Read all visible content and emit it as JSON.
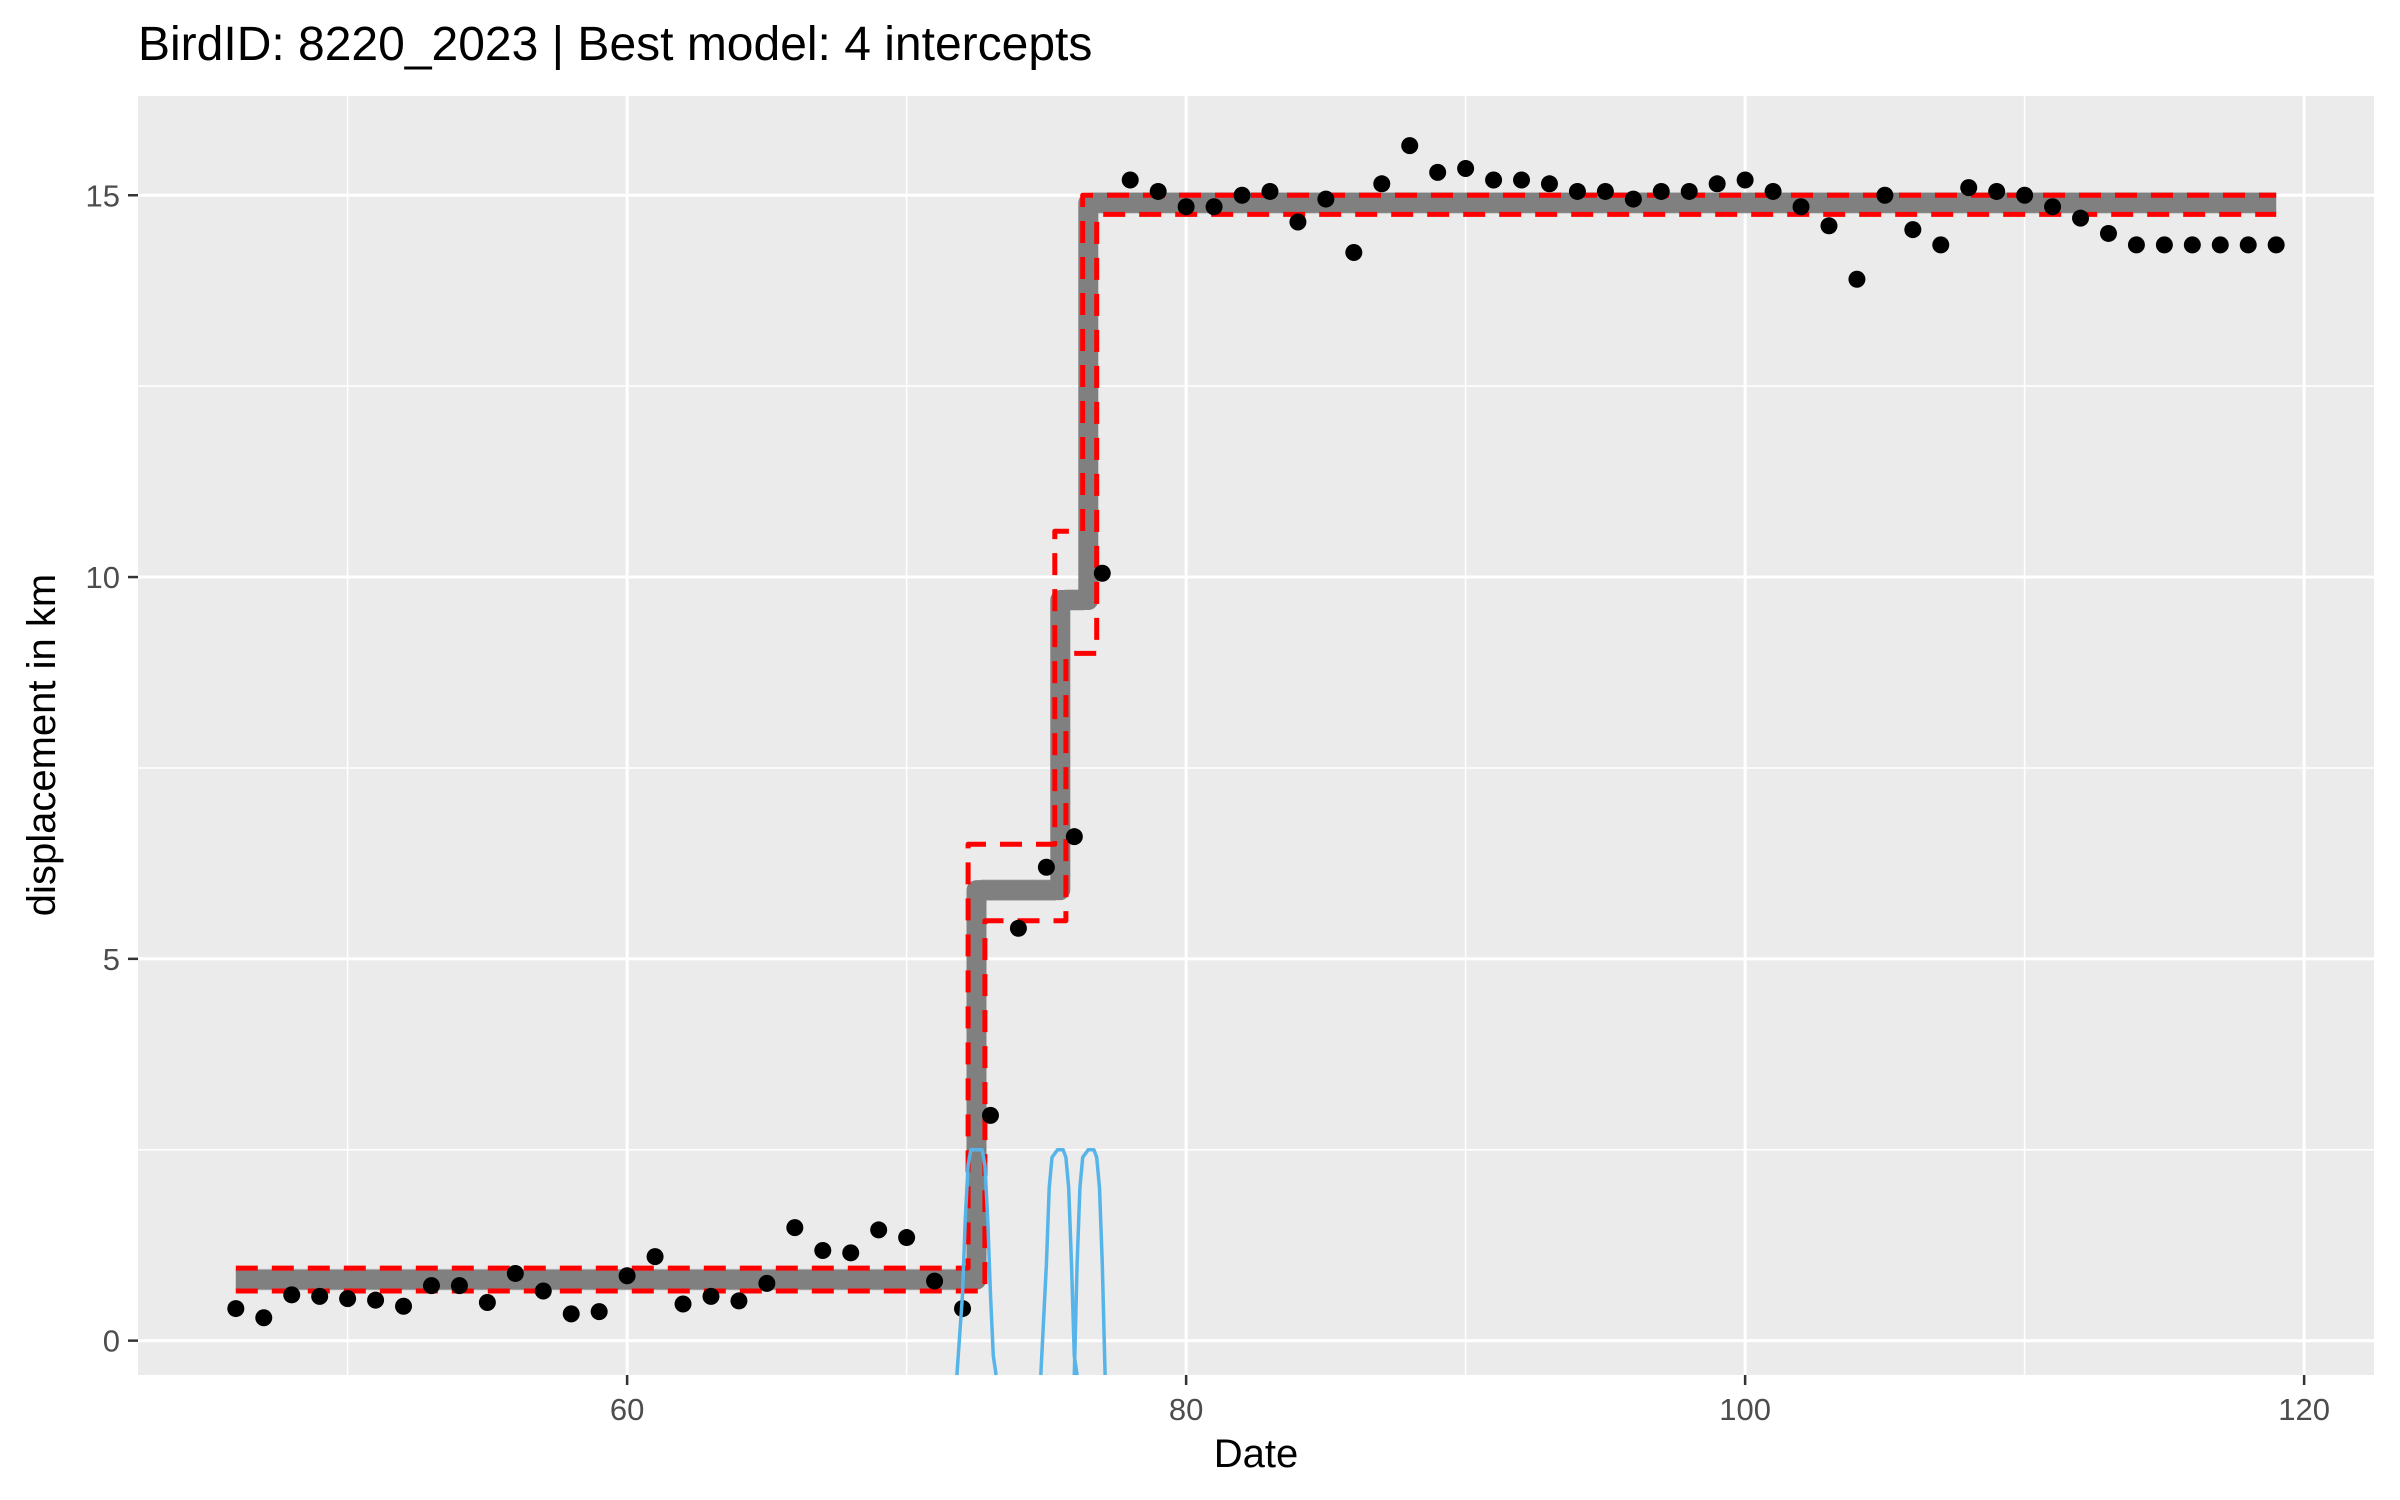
{
  "chart_data": {
    "type": "scatter",
    "title": "BirdID: 8220_2023 | Best model: 4 intercepts",
    "xlabel": "Date",
    "ylabel": "displacement in km",
    "xlim": [
      42.5,
      122.5
    ],
    "ylim": [
      -0.45,
      16.3
    ],
    "x_ticks": [
      60,
      80,
      100,
      120
    ],
    "y_ticks": [
      0,
      5,
      10,
      15
    ],
    "x_minor_ticks": [
      50,
      70,
      90,
      110
    ],
    "y_minor_ticks": [
      2.5,
      7.5,
      12.5
    ],
    "grid": true,
    "legend": "none",
    "colors": {
      "panel_background": "#EBEBEB",
      "grid": "#FFFFFF",
      "points": "#000000",
      "fit": "#808080",
      "envelope": "#FF0000",
      "changepoint_density": "#56B4E9"
    },
    "series": [
      {
        "type": "scatter",
        "x": [
          46,
          47,
          48,
          49,
          50,
          51,
          52,
          53,
          54,
          55,
          56,
          57,
          58,
          59,
          60,
          61,
          62,
          63,
          64,
          65,
          66,
          67,
          68,
          69,
          70,
          71,
          72,
          73,
          74,
          75,
          76,
          77,
          78,
          79,
          80,
          81,
          82,
          83,
          84,
          85,
          86,
          87,
          88,
          89,
          90,
          91,
          92,
          93,
          94,
          95,
          96,
          97,
          98,
          99,
          100,
          101,
          102,
          103,
          104,
          105,
          106,
          107,
          108,
          109,
          110,
          111,
          112,
          113,
          114,
          115,
          116,
          117,
          118,
          119
        ],
        "y": [
          0.42,
          0.3,
          0.6,
          0.58,
          0.55,
          0.53,
          0.45,
          0.72,
          0.72,
          0.5,
          0.88,
          0.65,
          0.35,
          0.38,
          0.85,
          1.1,
          0.48,
          0.58,
          0.52,
          0.75,
          1.48,
          1.18,
          1.15,
          1.45,
          1.35,
          0.78,
          0.42,
          2.95,
          5.4,
          6.2,
          6.6,
          10.05,
          15.2,
          15.05,
          14.85,
          14.85,
          15.0,
          15.05,
          14.65,
          14.95,
          14.25,
          15.15,
          15.65,
          15.3,
          15.35,
          15.2,
          15.2,
          15.15,
          15.05,
          15.05,
          14.95,
          15.05,
          15.05,
          15.15,
          15.2,
          15.05,
          14.85,
          14.6,
          13.9,
          15.0,
          14.55,
          14.35,
          15.1,
          15.05,
          15.0,
          14.85,
          14.7,
          14.5,
          14.35,
          14.35,
          14.35,
          14.35,
          14.35,
          14.35
        ]
      },
      {
        "type": "step",
        "x": [
          46,
          72.5,
          72.5,
          75.5,
          75.5,
          76.5,
          76.5,
          119
        ],
        "y": [
          0.8,
          0.8,
          5.9,
          5.9,
          9.7,
          9.7,
          14.9,
          14.9
        ]
      },
      {
        "type": "step",
        "x": [
          46,
          72.2,
          72.2,
          75.3,
          75.3,
          76.3,
          76.3,
          119
        ],
        "y": [
          0.95,
          0.95,
          6.5,
          6.5,
          10.6,
          10.6,
          15.0,
          15.0
        ]
      },
      {
        "type": "step",
        "x": [
          46,
          72.8,
          72.8,
          75.7,
          75.7,
          76.8,
          76.8,
          119
        ],
        "y": [
          0.65,
          0.65,
          5.5,
          5.5,
          9.0,
          9.0,
          14.75,
          14.75
        ]
      },
      {
        "type": "density",
        "x": [
          71.8,
          72.0,
          72.1,
          72.2,
          72.3,
          72.5,
          72.7,
          72.8,
          72.9,
          73.0,
          73.1,
          73.2
        ],
        "y": [
          -0.45,
          0.6,
          1.6,
          2.3,
          2.5,
          2.5,
          2.5,
          2.3,
          1.6,
          0.6,
          -0.2,
          -0.45
        ]
      },
      {
        "type": "density",
        "x": [
          74.8,
          75.0,
          75.1,
          75.2,
          75.4,
          75.6,
          75.7,
          75.8,
          75.9,
          76.0,
          76.1
        ],
        "y": [
          -0.45,
          1.0,
          2.0,
          2.4,
          2.5,
          2.5,
          2.4,
          2.0,
          1.0,
          -0.2,
          -0.45
        ]
      },
      {
        "type": "density",
        "x": [
          76.0,
          76.1,
          76.2,
          76.3,
          76.5,
          76.7,
          76.8,
          76.9,
          77.0,
          77.1
        ],
        "y": [
          -0.45,
          1.0,
          2.0,
          2.4,
          2.5,
          2.5,
          2.4,
          2.0,
          1.0,
          -0.45
        ]
      }
    ]
  }
}
